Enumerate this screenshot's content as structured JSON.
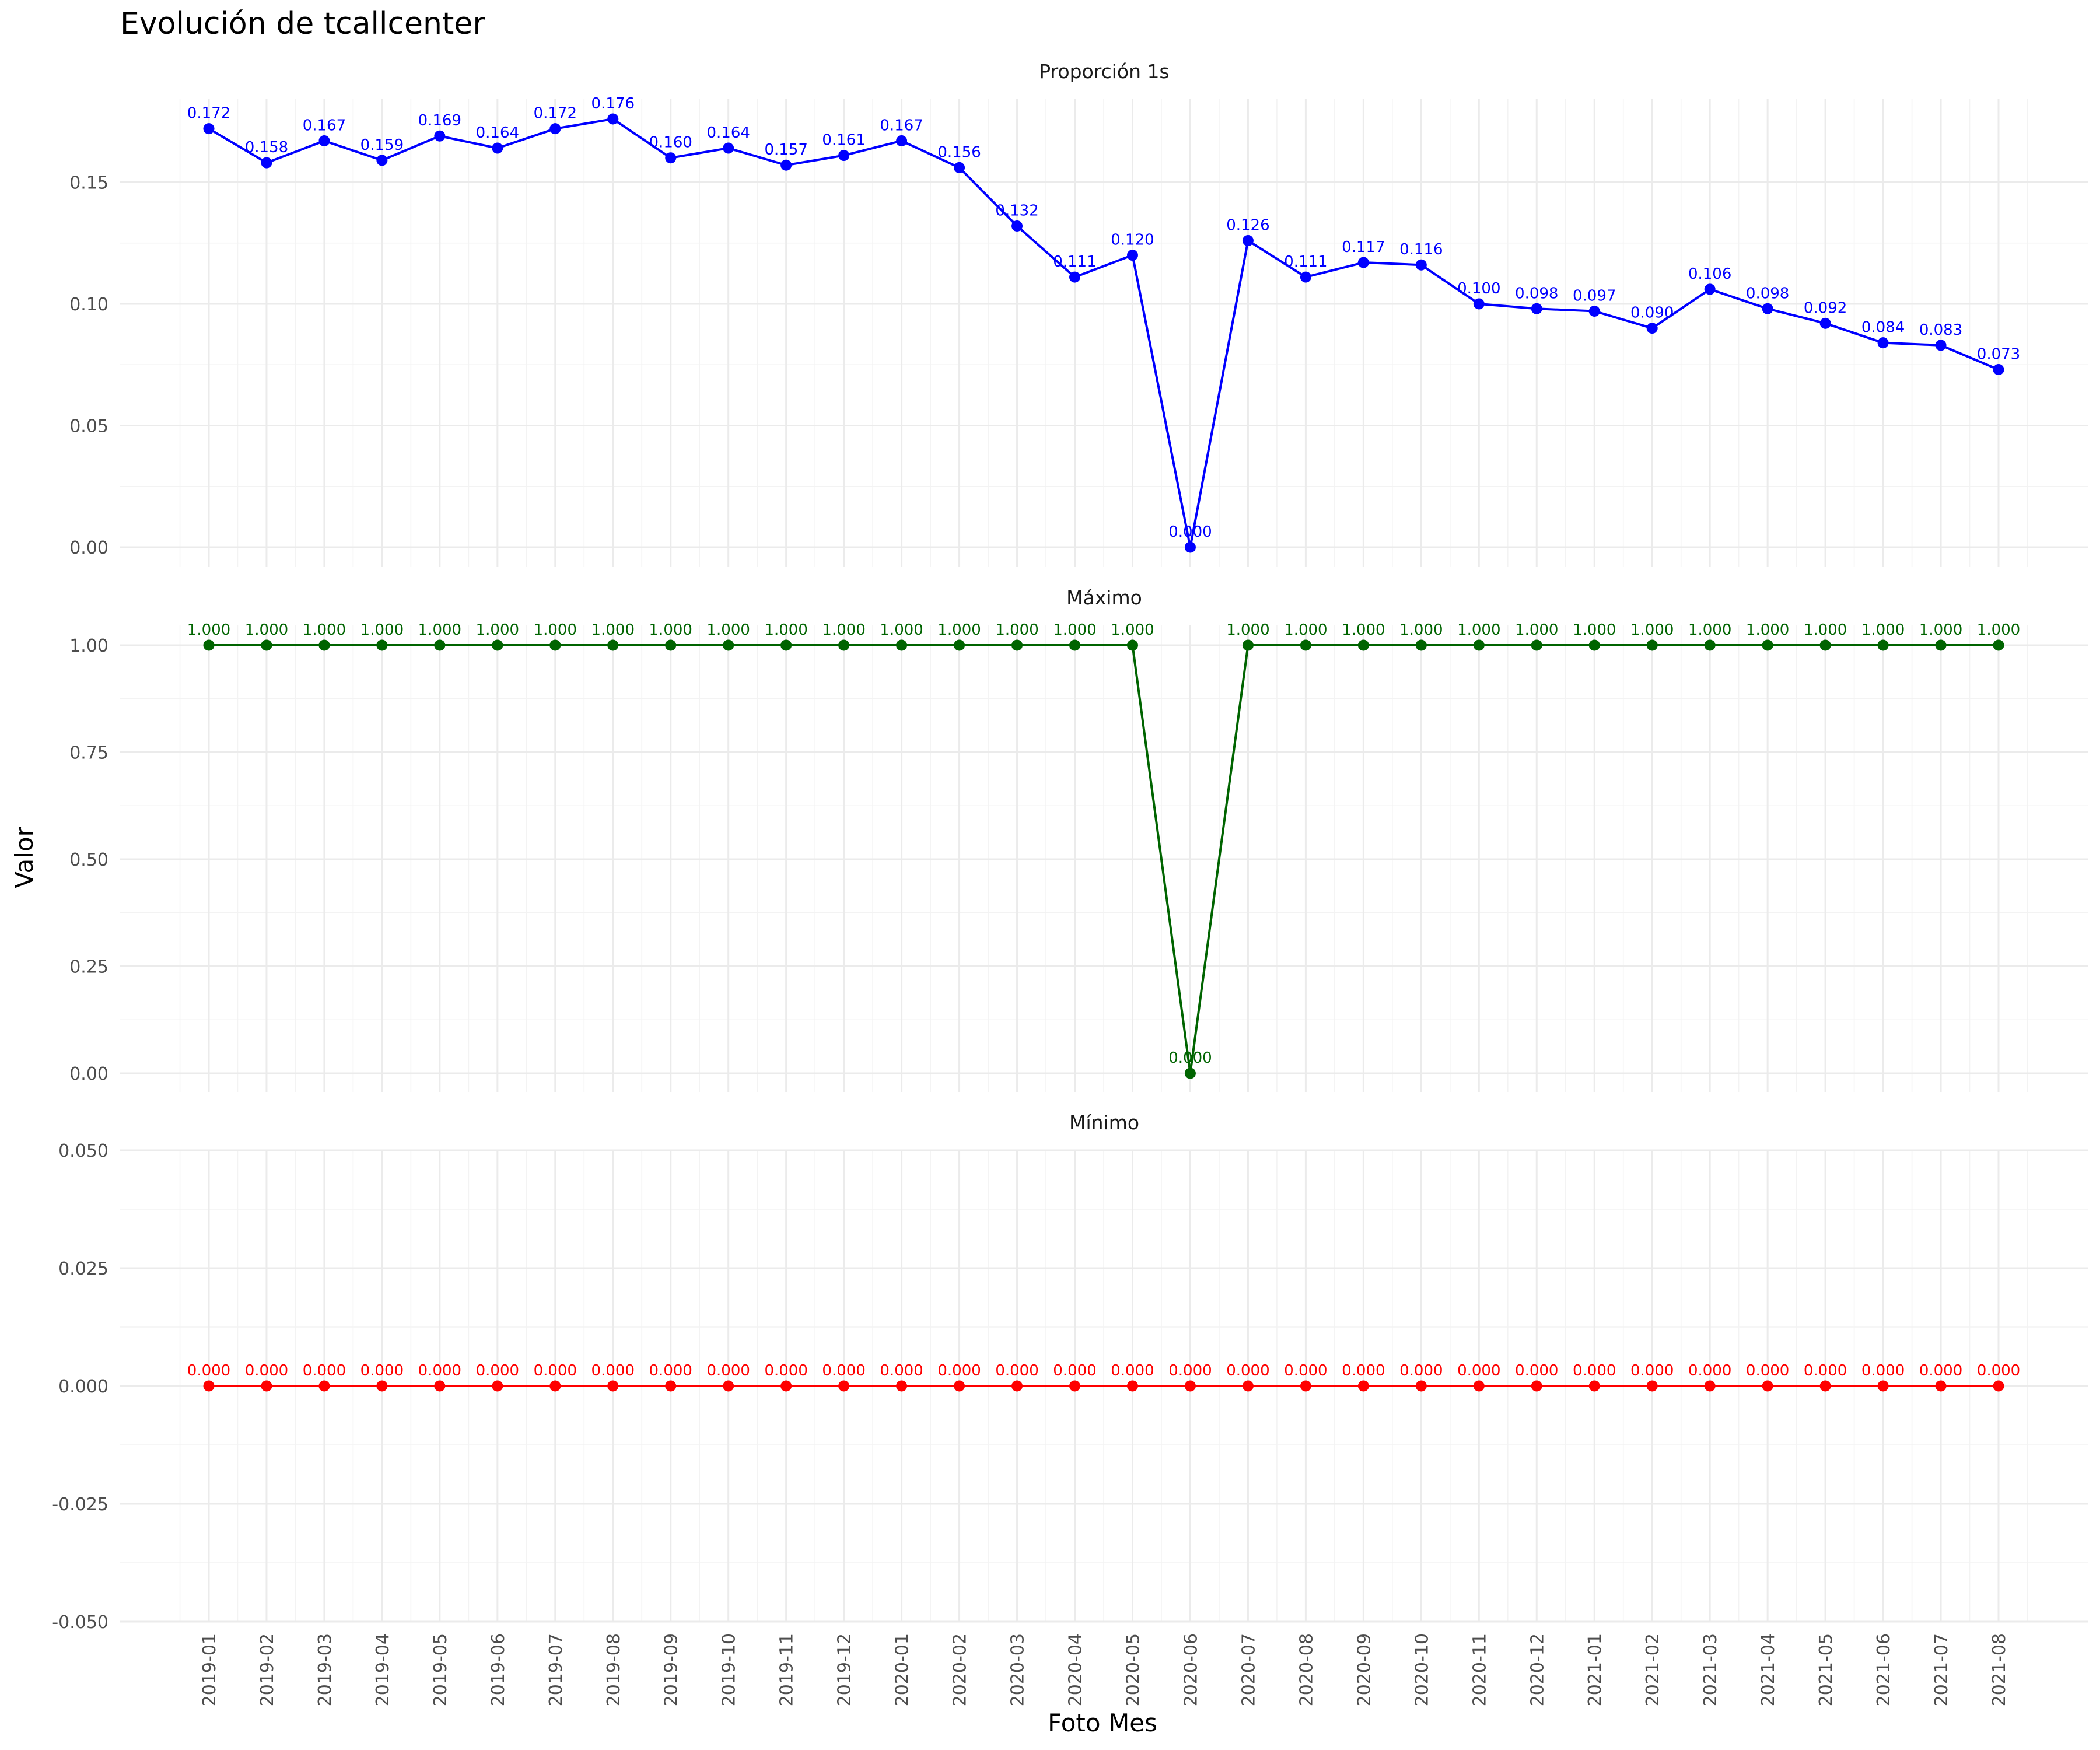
{
  "title": "Evolución de tcallcenter",
  "xlabel": "Foto Mes",
  "ylabel": "Valor",
  "chart_data": {
    "type": "line",
    "title": "Evolución de tcallcenter",
    "xlabel": "Foto Mes",
    "ylabel": "Valor",
    "grid": true,
    "categories": [
      "2019-01",
      "2019-02",
      "2019-03",
      "2019-04",
      "2019-05",
      "2019-06",
      "2019-07",
      "2019-08",
      "2019-09",
      "2019-10",
      "2019-11",
      "2019-12",
      "2020-01",
      "2020-02",
      "2020-03",
      "2020-04",
      "2020-05",
      "2020-06",
      "2020-07",
      "2020-08",
      "2020-09",
      "2020-10",
      "2020-11",
      "2020-12",
      "2021-01",
      "2021-02",
      "2021-03",
      "2021-04",
      "2021-05",
      "2021-06",
      "2021-07",
      "2021-08"
    ],
    "panels": [
      {
        "name": "Proporción 1s",
        "color": "#0000ff",
        "ylim": [
          0.0,
          0.176
        ],
        "yticks": [
          0.0,
          0.05,
          0.1,
          0.15
        ],
        "ytick_labels": [
          "0.00",
          "0.05",
          "0.10",
          "0.15"
        ],
        "values": [
          0.172,
          0.158,
          0.167,
          0.159,
          0.169,
          0.164,
          0.172,
          0.176,
          0.16,
          0.164,
          0.157,
          0.161,
          0.167,
          0.156,
          0.132,
          0.111,
          0.12,
          0.0,
          0.126,
          0.111,
          0.117,
          0.116,
          0.1,
          0.098,
          0.097,
          0.09,
          0.106,
          0.098,
          0.092,
          0.084,
          0.083,
          0.073
        ],
        "labels": [
          "0.172",
          "0.158",
          "0.167",
          "0.159",
          "0.169",
          "0.164",
          "0.172",
          "0.176",
          "0.160",
          "0.164",
          "0.157",
          "0.161",
          "0.167",
          "0.156",
          "0.132",
          "0.111",
          "0.120",
          "0.000",
          "0.126",
          "0.111",
          "0.117",
          "0.116",
          "0.100",
          "0.098",
          "0.097",
          "0.090",
          "0.106",
          "0.098",
          "0.092",
          "0.084",
          "0.083",
          "0.073"
        ]
      },
      {
        "name": "Máximo",
        "color": "#006400",
        "ylim": [
          0.0,
          1.0
        ],
        "yticks": [
          0.0,
          0.25,
          0.5,
          0.75,
          1.0
        ],
        "ytick_labels": [
          "0.00",
          "0.25",
          "0.50",
          "0.75",
          "1.00"
        ],
        "values": [
          1,
          1,
          1,
          1,
          1,
          1,
          1,
          1,
          1,
          1,
          1,
          1,
          1,
          1,
          1,
          1,
          1,
          0,
          1,
          1,
          1,
          1,
          1,
          1,
          1,
          1,
          1,
          1,
          1,
          1,
          1,
          1
        ],
        "labels": [
          "1.000",
          "1.000",
          "1.000",
          "1.000",
          "1.000",
          "1.000",
          "1.000",
          "1.000",
          "1.000",
          "1.000",
          "1.000",
          "1.000",
          "1.000",
          "1.000",
          "1.000",
          "1.000",
          "1.000",
          "0.000",
          "1.000",
          "1.000",
          "1.000",
          "1.000",
          "1.000",
          "1.000",
          "1.000",
          "1.000",
          "1.000",
          "1.000",
          "1.000",
          "1.000",
          "1.000",
          "1.000"
        ]
      },
      {
        "name": "Mínimo",
        "color": "#ff0000",
        "ylim": [
          -0.05,
          0.05
        ],
        "yticks": [
          -0.05,
          -0.025,
          0.0,
          0.025,
          0.05
        ],
        "ytick_labels": [
          "-0.050",
          "-0.025",
          "0.000",
          "0.025",
          "0.050"
        ],
        "values": [
          0,
          0,
          0,
          0,
          0,
          0,
          0,
          0,
          0,
          0,
          0,
          0,
          0,
          0,
          0,
          0,
          0,
          0,
          0,
          0,
          0,
          0,
          0,
          0,
          0,
          0,
          0,
          0,
          0,
          0,
          0,
          0
        ],
        "labels": [
          "0.000",
          "0.000",
          "0.000",
          "0.000",
          "0.000",
          "0.000",
          "0.000",
          "0.000",
          "0.000",
          "0.000",
          "0.000",
          "0.000",
          "0.000",
          "0.000",
          "0.000",
          "0.000",
          "0.000",
          "0.000",
          "0.000",
          "0.000",
          "0.000",
          "0.000",
          "0.000",
          "0.000",
          "0.000",
          "0.000",
          "0.000",
          "0.000",
          "0.000",
          "0.000",
          "0.000",
          "0.000"
        ]
      }
    ]
  }
}
